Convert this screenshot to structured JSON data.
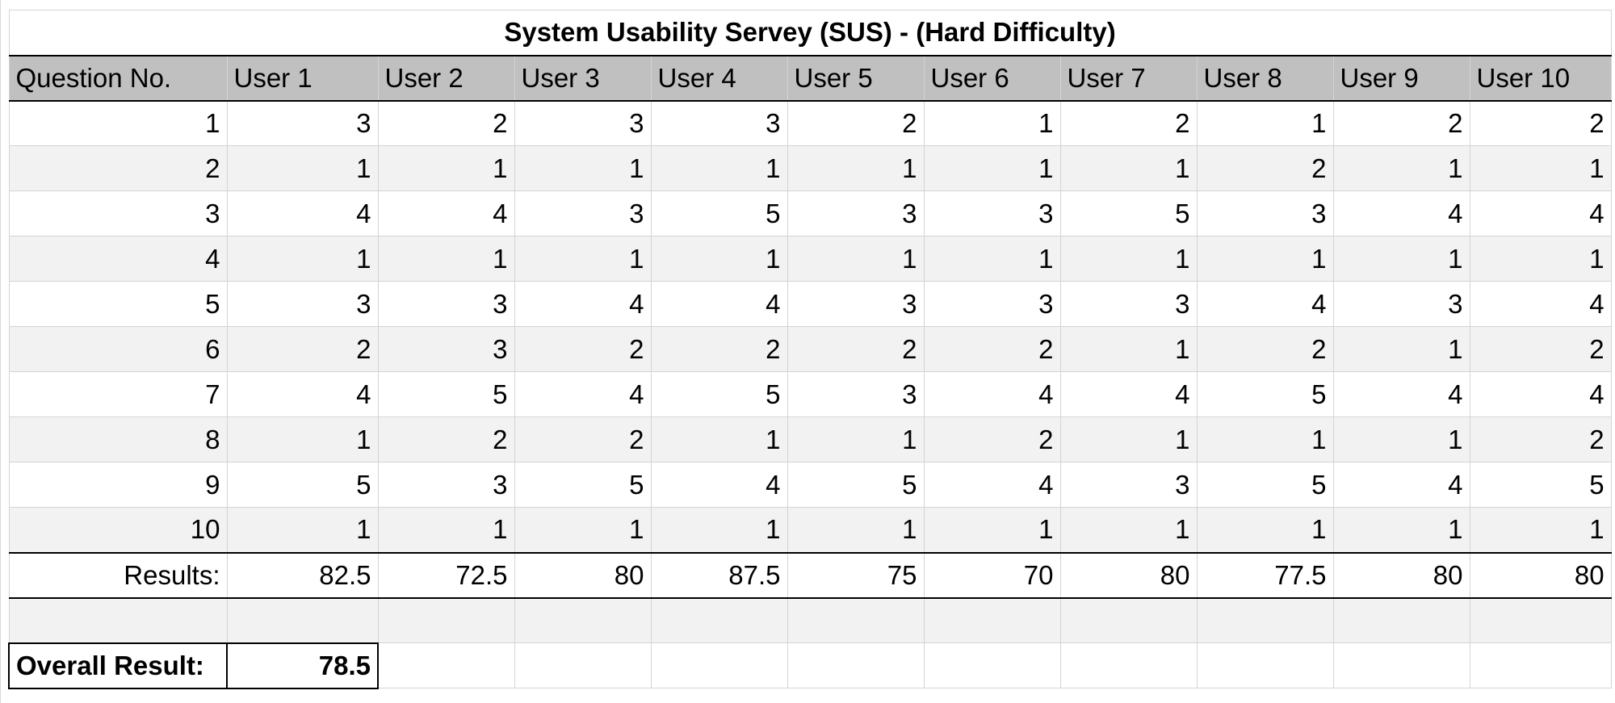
{
  "title": "System Usability Servey (SUS) - (Hard Difficulty)",
  "headers": [
    "Question No.",
    "User 1",
    "User 2",
    "User 3",
    "User 4",
    "User 5",
    "User 6",
    "User 7",
    "User 8",
    "User 9",
    "User 10"
  ],
  "rows": [
    [
      "1",
      "3",
      "2",
      "3",
      "3",
      "2",
      "1",
      "2",
      "1",
      "2",
      "2"
    ],
    [
      "2",
      "1",
      "1",
      "1",
      "1",
      "1",
      "1",
      "1",
      "2",
      "1",
      "1"
    ],
    [
      "3",
      "4",
      "4",
      "3",
      "5",
      "3",
      "3",
      "5",
      "3",
      "4",
      "4"
    ],
    [
      "4",
      "1",
      "1",
      "1",
      "1",
      "1",
      "1",
      "1",
      "1",
      "1",
      "1"
    ],
    [
      "5",
      "3",
      "3",
      "4",
      "4",
      "3",
      "3",
      "3",
      "4",
      "3",
      "4"
    ],
    [
      "6",
      "2",
      "3",
      "2",
      "2",
      "2",
      "2",
      "1",
      "2",
      "1",
      "2"
    ],
    [
      "7",
      "4",
      "5",
      "4",
      "5",
      "3",
      "4",
      "4",
      "5",
      "4",
      "4"
    ],
    [
      "8",
      "1",
      "2",
      "2",
      "1",
      "1",
      "2",
      "1",
      "1",
      "1",
      "2"
    ],
    [
      "9",
      "5",
      "3",
      "5",
      "4",
      "5",
      "4",
      "3",
      "5",
      "4",
      "5"
    ],
    [
      "10",
      "1",
      "1",
      "1",
      "1",
      "1",
      "1",
      "1",
      "1",
      "1",
      "1"
    ]
  ],
  "results": {
    "label": "Results:",
    "values": [
      "82.5",
      "72.5",
      "80",
      "87.5",
      "75",
      "70",
      "80",
      "77.5",
      "80",
      "80"
    ]
  },
  "overall": {
    "label": "Overall Result:",
    "value": "78.5"
  }
}
